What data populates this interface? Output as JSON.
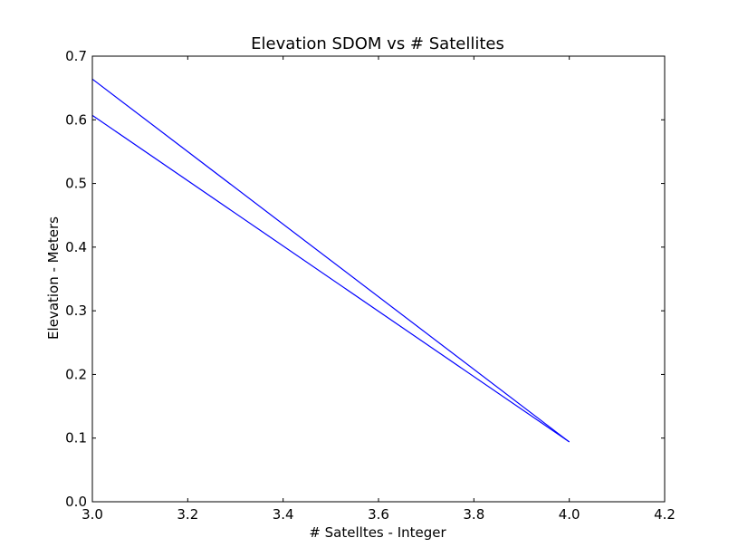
{
  "chart_data": {
    "type": "line",
    "title": "Elevation SDOM vs # Satellites",
    "xlabel": "# Satelltes - Integer",
    "ylabel": "Elevation - Meters",
    "xlim": [
      3.0,
      4.2
    ],
    "ylim": [
      0.0,
      0.7
    ],
    "xticks": [
      "3.0",
      "3.2",
      "3.4",
      "3.6",
      "3.8",
      "4.0",
      "4.2"
    ],
    "yticks": [
      "0.0",
      "0.1",
      "0.2",
      "0.3",
      "0.4",
      "0.5",
      "0.6",
      "0.7"
    ],
    "grid": false,
    "line_color": "#0000ff",
    "series": [
      {
        "x": [
          3.0,
          4.0
        ],
        "y": [
          0.664,
          0.094
        ]
      },
      {
        "x": [
          3.0,
          4.0
        ],
        "y": [
          0.607,
          0.094
        ]
      }
    ]
  }
}
